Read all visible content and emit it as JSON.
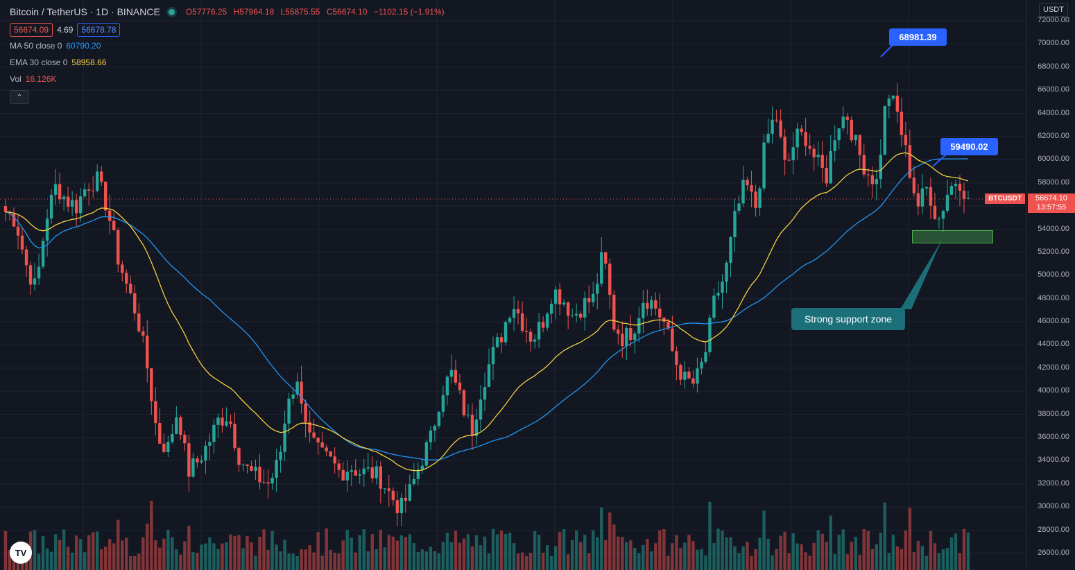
{
  "header": {
    "symbol_title": "Bitcoin / TetherUS · 1D · BINANCE",
    "ohlc": {
      "o": "O57776.25",
      "h": "H57964.18",
      "l": "L55875.55",
      "c": "C56674.10",
      "change": "−1102.15 (−1.91%)"
    },
    "bid": "56674.09",
    "spread": "4.69",
    "ask": "56678.78"
  },
  "indicators": [
    {
      "label": "MA 50 close 0",
      "value": "60790.20",
      "color": "#2196f3"
    },
    {
      "label": "EMA 30 close 0",
      "value": "58958.66",
      "color": "#f4d03f"
    },
    {
      "label": "Vol",
      "value": "16.126K",
      "color": "#ef5350"
    }
  ],
  "price_axis": {
    "currency": "USDT",
    "labels": [
      "72000.00",
      "70000.00",
      "68000.00",
      "66000.00",
      "64000.00",
      "62000.00",
      "60000.00",
      "58000.00",
      "56000.00",
      "54000.00",
      "52000.00",
      "50000.00",
      "48000.00",
      "46000.00",
      "44000.00",
      "42000.00",
      "40000.00",
      "38000.00",
      "36000.00",
      "34000.00",
      "32000.00",
      "30000.00",
      "28000.00",
      "26000.00"
    ],
    "last_price": "56674.10",
    "countdown": "13:57:55",
    "symbol_tag": "BTCUSDT"
  },
  "callouts": {
    "high": "68981.39",
    "ma_touch": "59490.02",
    "support": "Strong support zone"
  },
  "colors": {
    "up": "#26a69a",
    "down": "#ef5350",
    "ma": "#2196f3",
    "ema": "#f4d03f",
    "bg": "#131722",
    "grid": "#1f2433"
  },
  "chart_data": {
    "type": "candlestick",
    "ylim": [
      25000,
      73000
    ],
    "close_anchors": [
      55500,
      54800,
      51000,
      48800,
      55000,
      57800,
      56500,
      56000,
      57800,
      58300,
      56000,
      51800,
      49000,
      46500,
      42000,
      36000,
      35000,
      38500,
      33000,
      34000,
      35500,
      37500,
      38000,
      34500,
      33000,
      32500,
      32000,
      34000,
      40000,
      40500,
      36000,
      34500,
      34000,
      33000,
      33500,
      33000,
      33000,
      32500,
      31000,
      29800,
      31500,
      34000,
      36000,
      40000,
      41500,
      39000,
      36500,
      40500,
      43000,
      45000,
      47800,
      46000,
      44500,
      46000,
      48800,
      48000,
      46500,
      47500,
      48000,
      52000,
      45800,
      44500,
      45500,
      48200,
      47500,
      45900,
      42800,
      41000,
      40600,
      43000,
      48000,
      50000,
      55000,
      58000,
      55800,
      61500,
      64000,
      59000,
      62000,
      62000,
      59800,
      58500,
      63000,
      64000,
      61000,
      59000,
      58000,
      66000,
      64000,
      60000,
      56000,
      57700,
      54600,
      57300,
      58500,
      56674
    ],
    "ma50": {
      "name": "MA 50 close 0",
      "last": 60790.2
    },
    "ema30": {
      "name": "EMA 30 close 0",
      "last": 58958.66
    }
  }
}
